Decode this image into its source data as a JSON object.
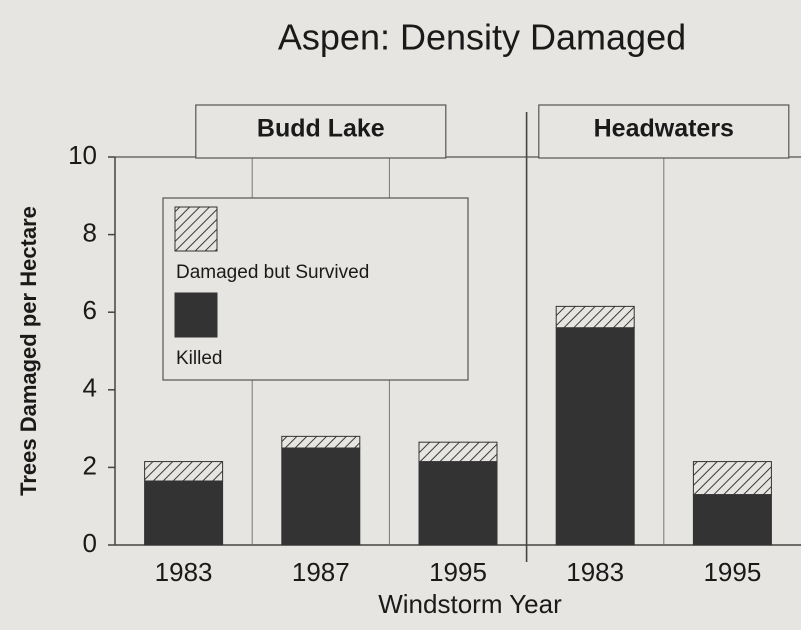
{
  "chart_data": {
    "type": "bar",
    "stacked": true,
    "title": "Aspen: Density Damaged",
    "xlabel": "Windstorm Year",
    "ylabel": "Trees Damaged per Hectare",
    "ylim": [
      0,
      10
    ],
    "yticks": [
      0,
      2,
      4,
      6,
      8,
      10
    ],
    "series": [
      {
        "name": "Damaged but Survived",
        "color": "#3a3a3a",
        "pattern": "hatch"
      },
      {
        "name": "Killed",
        "color": "#333333"
      }
    ],
    "panels": [
      {
        "title": "Budd Lake",
        "categories": [
          "1983",
          "1987",
          "1995"
        ],
        "values": [
          [
            0.5,
            0.3,
            0.5
          ],
          [
            1.65,
            2.5,
            2.15
          ]
        ]
      },
      {
        "title": "Headwaters",
        "categories": [
          "1983",
          "1995"
        ],
        "values": [
          [
            0.55,
            0.85
          ],
          [
            5.6,
            1.3
          ]
        ]
      }
    ]
  }
}
